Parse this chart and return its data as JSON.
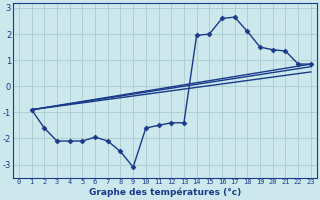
{
  "background_color": "#cce8ec",
  "grid_color": "#aacccc",
  "line_color": "#1a3a8a",
  "xlabel": "Graphe des températures (°c)",
  "xlim": [
    -0.5,
    23.5
  ],
  "ylim": [
    -3.5,
    3.2
  ],
  "yticks": [
    -3,
    -2,
    -1,
    0,
    1,
    2,
    3
  ],
  "xticks": [
    0,
    1,
    2,
    3,
    4,
    5,
    6,
    7,
    8,
    9,
    10,
    11,
    12,
    13,
    14,
    15,
    16,
    17,
    18,
    19,
    20,
    21,
    22,
    23
  ],
  "main_series": {
    "x": [
      1,
      2,
      3,
      4,
      5,
      6,
      7,
      8,
      9,
      10,
      11,
      12,
      13,
      14,
      15,
      16,
      17,
      18,
      19,
      20,
      21,
      22,
      23
    ],
    "y": [
      -0.9,
      -1.6,
      -2.1,
      -2.1,
      -2.1,
      -1.95,
      -2.1,
      -2.5,
      -3.1,
      -1.6,
      -1.5,
      -1.4,
      -1.4,
      1.95,
      2.0,
      2.6,
      2.65,
      2.1,
      1.5,
      1.4,
      1.35,
      0.85,
      0.85
    ],
    "marker": "D",
    "marker_size": 2.5,
    "linewidth": 1.0
  },
  "trend_lines": [
    {
      "x": [
        1,
        23
      ],
      "y": [
        -0.9,
        0.85
      ]
    },
    {
      "x": [
        1,
        23
      ],
      "y": [
        -0.9,
        0.75
      ]
    },
    {
      "x": [
        1,
        23
      ],
      "y": [
        -0.9,
        0.55
      ]
    }
  ]
}
